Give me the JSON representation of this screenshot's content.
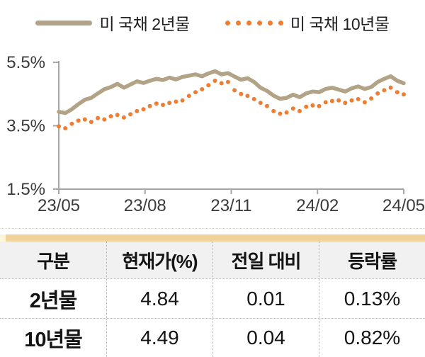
{
  "legend": {
    "series1_label": "미 국채 2년물",
    "series2_label": "미 국채 10년물"
  },
  "chart_data": {
    "type": "line",
    "title": "",
    "xlabel": "",
    "ylabel": "",
    "ylim": [
      1.5,
      5.5
    ],
    "grid": false,
    "legend_position": "top-center",
    "x_ticks": [
      "23/05",
      "23/08",
      "23/11",
      "24/02",
      "24/05"
    ],
    "y_tick_labels": [
      "5.5%",
      "3.5%",
      "1.5%"
    ],
    "y_tick_values": [
      5.5,
      3.5,
      1.5
    ],
    "axis_color": "#a6a6a6",
    "tick_text_color": "#3a3a3a",
    "series": [
      {
        "name": "미 국채 2년물",
        "style": "solid",
        "color": "#b3a386",
        "values": [
          3.94,
          3.9,
          4.02,
          4.18,
          4.32,
          4.38,
          4.52,
          4.65,
          4.72,
          4.82,
          4.7,
          4.8,
          4.9,
          4.85,
          4.92,
          4.98,
          4.94,
          5.02,
          4.96,
          5.04,
          5.08,
          5.12,
          5.06,
          5.15,
          5.22,
          5.12,
          5.16,
          5.05,
          4.95,
          5.0,
          4.88,
          4.7,
          4.6,
          4.45,
          4.35,
          4.38,
          4.48,
          4.4,
          4.52,
          4.58,
          4.56,
          4.66,
          4.7,
          4.64,
          4.58,
          4.68,
          4.74,
          4.66,
          4.72,
          4.88,
          4.98,
          5.06,
          4.92,
          4.84
        ]
      },
      {
        "name": "미 국채 10년물",
        "style": "dotted",
        "color": "#ed7d31",
        "values": [
          3.48,
          3.42,
          3.56,
          3.66,
          3.7,
          3.62,
          3.74,
          3.7,
          3.8,
          3.84,
          3.76,
          3.86,
          3.96,
          4.02,
          4.12,
          4.2,
          4.16,
          4.22,
          4.26,
          4.3,
          4.44,
          4.56,
          4.65,
          4.78,
          4.92,
          4.84,
          4.88,
          4.62,
          4.5,
          4.44,
          4.34,
          4.22,
          4.12,
          3.96,
          3.88,
          3.92,
          4.04,
          3.96,
          4.1,
          4.14,
          4.12,
          4.24,
          4.28,
          4.3,
          4.22,
          4.3,
          4.34,
          4.24,
          4.36,
          4.52,
          4.62,
          4.7,
          4.56,
          4.49
        ]
      }
    ]
  },
  "table": {
    "accent_color": "#f0d29a",
    "columns": [
      "구분",
      "현재가(%)",
      "전일 대비",
      "등락률"
    ],
    "rows": [
      [
        "2년물",
        "4.84",
        "0.01",
        "0.13%"
      ],
      [
        "10년물",
        "4.49",
        "0.04",
        "0.82%"
      ]
    ]
  }
}
